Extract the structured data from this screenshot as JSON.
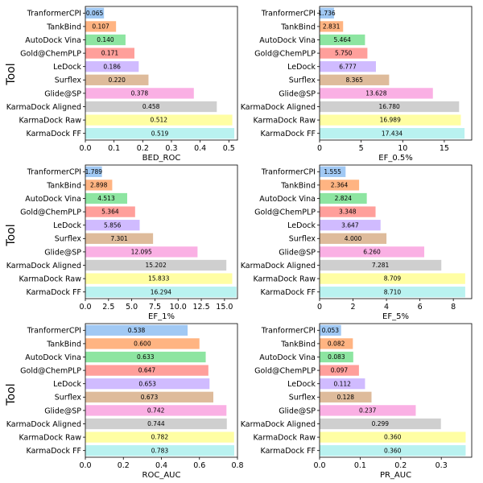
{
  "figure": {
    "ylabel_text": "Tool"
  },
  "chart_data": [
    {
      "type": "bar",
      "orientation": "horizontal",
      "xlabel": "BED_ROC",
      "ylabel": "Tool",
      "xlim": [
        0,
        0.53
      ],
      "xticks": [
        0.0,
        0.1,
        0.2,
        0.3,
        0.4,
        0.5
      ],
      "xtick_labels": [
        "0.0",
        "0.1",
        "0.2",
        "0.3",
        "0.4",
        "0.5"
      ],
      "categories": [
        "TranformerCPI",
        "TankBind",
        "AutoDock Vina",
        "Gold@ChemPLP",
        "LeDock",
        "Surflex",
        "Glide@SP",
        "KarmaDock Aligned",
        "KarmaDock Raw",
        "KarmaDock FF"
      ],
      "values": [
        0.065,
        0.107,
        0.14,
        0.171,
        0.186,
        0.22,
        0.378,
        0.458,
        0.512,
        0.519
      ],
      "value_labels": [
        "0.065",
        "0.107",
        "0.140",
        "0.171",
        "0.186",
        "0.220",
        "0.378",
        "0.458",
        "0.512",
        "0.519"
      ]
    },
    {
      "type": "bar",
      "orientation": "horizontal",
      "xlabel": "EF_0.5%",
      "ylabel": "",
      "xlim": [
        0,
        18.3
      ],
      "xticks": [
        0,
        5,
        10,
        15
      ],
      "xtick_labels": [
        "0",
        "5",
        "10",
        "15"
      ],
      "categories": [
        "TranformerCPI",
        "TankBind",
        "AutoDock Vina",
        "Gold@ChemPLP",
        "LeDock",
        "Surflex",
        "Glide@SP",
        "KarmaDock Aligned",
        "KarmaDock Raw",
        "KarmaDock FF"
      ],
      "values": [
        1.736,
        2.831,
        5.464,
        5.75,
        6.777,
        8.365,
        13.628,
        16.78,
        16.989,
        17.434
      ],
      "value_labels": [
        "1.736",
        "2.831",
        "5.464",
        "5.750",
        "6.777",
        "8.365",
        "13.628",
        "16.780",
        "16.989",
        "17.434"
      ]
    },
    {
      "type": "bar",
      "orientation": "horizontal",
      "xlabel": "EF_1%",
      "ylabel": "Tool",
      "xlim": [
        0,
        16.4
      ],
      "xticks": [
        0,
        2.5,
        5,
        7.5,
        10,
        12.5,
        15
      ],
      "xtick_labels": [
        "0.0",
        "2.5",
        "5.0",
        "7.5",
        "10.0",
        "12.5",
        "15.0"
      ],
      "categories": [
        "TranformerCPI",
        "TankBind",
        "AutoDock Vina",
        "Gold@ChemPLP",
        "LeDock",
        "Surflex",
        "Glide@SP",
        "KarmaDock Aligned",
        "KarmaDock Raw",
        "KarmaDock FF"
      ],
      "values": [
        1.789,
        2.898,
        4.513,
        5.364,
        5.856,
        7.301,
        12.095,
        15.202,
        15.833,
        16.294
      ],
      "value_labels": [
        "1.789",
        "2.898",
        "4.513",
        "5.364",
        "5.856",
        "7.301",
        "12.095",
        "15.202",
        "15.833",
        "16.294"
      ]
    },
    {
      "type": "bar",
      "orientation": "horizontal",
      "xlabel": "EF_5%",
      "ylabel": "",
      "xlim": [
        0,
        9.1
      ],
      "xticks": [
        0,
        2,
        4,
        6,
        8
      ],
      "xtick_labels": [
        "0",
        "2",
        "4",
        "6",
        "8"
      ],
      "categories": [
        "TranformerCPI",
        "TankBind",
        "AutoDock Vina",
        "Gold@ChemPLP",
        "LeDock",
        "Surflex",
        "Glide@SP",
        "KarmaDock Aligned",
        "KarmaDock Raw",
        "KarmaDock FF"
      ],
      "values": [
        1.555,
        2.364,
        2.824,
        3.348,
        3.647,
        4.0,
        6.26,
        7.281,
        8.709,
        8.71
      ],
      "value_labels": [
        "1.555",
        "2.364",
        "2.824",
        "3.348",
        "3.647",
        "4.000",
        "6.260",
        "7.281",
        "8.709",
        "8.710"
      ]
    },
    {
      "type": "bar",
      "orientation": "horizontal",
      "xlabel": "ROC_AUC",
      "ylabel": "Tool",
      "xlim": [
        0,
        0.8
      ],
      "xticks": [
        0.0,
        0.2,
        0.4,
        0.6,
        0.8
      ],
      "xtick_labels": [
        "0.0",
        "0.2",
        "0.4",
        "0.6",
        "0.8"
      ],
      "categories": [
        "TranformerCPI",
        "TankBind",
        "AutoDock Vina",
        "Gold@ChemPLP",
        "LeDock",
        "Surflex",
        "Glide@SP",
        "KarmaDock Aligned",
        "KarmaDock Raw",
        "KarmaDock FF"
      ],
      "values": [
        0.538,
        0.6,
        0.633,
        0.647,
        0.653,
        0.673,
        0.742,
        0.744,
        0.782,
        0.783
      ],
      "value_labels": [
        "0.538",
        "0.600",
        "0.633",
        "0.647",
        "0.653",
        "0.673",
        "0.742",
        "0.744",
        "0.782",
        "0.783"
      ]
    },
    {
      "type": "bar",
      "orientation": "horizontal",
      "xlabel": "PR_AUC",
      "ylabel": "",
      "xlim": [
        0,
        0.375
      ],
      "xticks": [
        0.0,
        0.1,
        0.2,
        0.3
      ],
      "xtick_labels": [
        "0.0",
        "0.1",
        "0.2",
        "0.3"
      ],
      "categories": [
        "TranformerCPI",
        "TankBind",
        "AutoDock Vina",
        "Gold@ChemPLP",
        "LeDock",
        "Surflex",
        "Glide@SP",
        "KarmaDock Aligned",
        "KarmaDock Raw",
        "KarmaDock FF"
      ],
      "values": [
        0.053,
        0.082,
        0.083,
        0.097,
        0.112,
        0.128,
        0.237,
        0.299,
        0.36,
        0.36
      ],
      "value_labels": [
        "0.053",
        "0.082",
        "0.083",
        "0.097",
        "0.112",
        "0.128",
        "0.237",
        "0.299",
        "0.360",
        "0.360"
      ]
    }
  ],
  "colors": [
    "#a1c9f4",
    "#ffb482",
    "#8de5a1",
    "#ff9f9b",
    "#d0bbff",
    "#debb9b",
    "#fab0e4",
    "#cfcfcf",
    "#fffea3",
    "#b9f2f0"
  ]
}
